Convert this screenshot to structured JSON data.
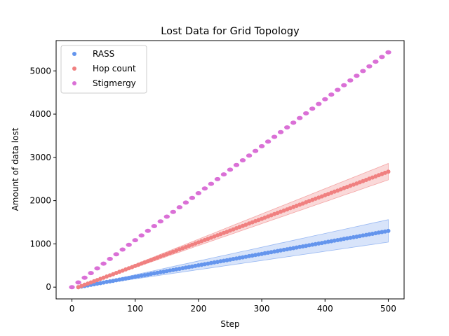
{
  "chart_data": {
    "type": "scatter",
    "title": "Lost Data for Grid Topology",
    "xlabel": "Step",
    "ylabel": "Amount of data lost",
    "xlim": [
      -25,
      525
    ],
    "ylim": [
      -272,
      5700
    ],
    "xticks": [
      0,
      100,
      200,
      300,
      400,
      500
    ],
    "yticks": [
      0,
      1000,
      2000,
      3000,
      4000,
      5000
    ],
    "legend_location": "upper-left",
    "series": [
      {
        "name": "RASS",
        "color": "#6495ed",
        "x_start": 10,
        "x_end": 500,
        "x_step": 5,
        "y_at_start": 0,
        "y_at_end": 1300,
        "band_at_start": 0,
        "band_at_end": 260,
        "band_opacity": 0.25
      },
      {
        "name": "Hop count",
        "color": "#f08080",
        "x_start": 10,
        "x_end": 500,
        "x_step": 5,
        "y_at_start": 0,
        "y_at_end": 2670,
        "band_at_start": 0,
        "band_at_end": 190,
        "band_opacity": 0.3
      },
      {
        "name": "Stigmergy",
        "color": "#da70d6",
        "x_start": 0,
        "x_end": 500,
        "x_step": 10,
        "y_at_start": 0,
        "y_at_end": 5430,
        "band_at_start": 0,
        "band_at_end": 0,
        "band_opacity": 0
      }
    ]
  }
}
